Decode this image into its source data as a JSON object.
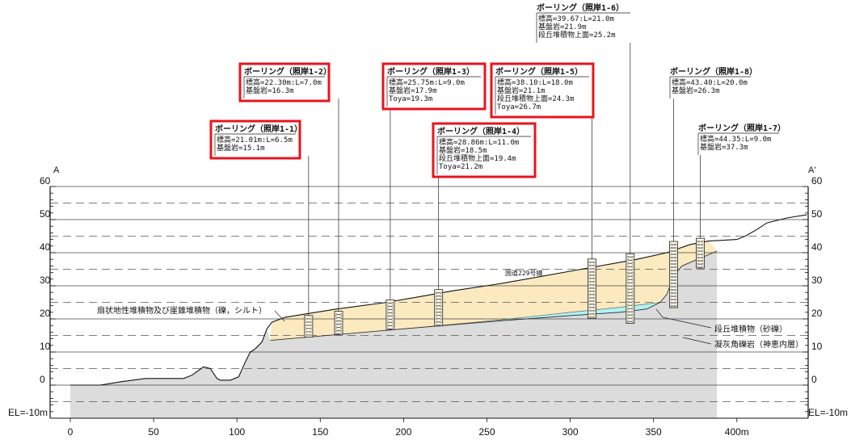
{
  "section": {
    "left_label": "A",
    "right_label": "A'",
    "bottom_elev_label": "EL=-10m"
  },
  "chart_data": {
    "type": "diagram",
    "x_axis": {
      "ticks": [
        0,
        50,
        100,
        150,
        200,
        250,
        300,
        350
      ],
      "last_tick_label": "400m",
      "last_tick": 400
    },
    "y_axis": {
      "ticks": [
        60,
        50,
        40,
        30,
        20,
        10,
        0
      ],
      "range": [
        -10,
        60
      ]
    },
    "ground_profile": [
      [
        0,
        0
      ],
      [
        18,
        0
      ],
      [
        30,
        1
      ],
      [
        45,
        2
      ],
      [
        68,
        2
      ],
      [
        73,
        3
      ],
      [
        80,
        5.5
      ],
      [
        84,
        5
      ],
      [
        88,
        2
      ],
      [
        90,
        1.5
      ],
      [
        96,
        1.5
      ],
      [
        101,
        2.5
      ],
      [
        105,
        7
      ],
      [
        108,
        10
      ],
      [
        111,
        11
      ],
      [
        115,
        13
      ],
      [
        118,
        17
      ],
      [
        121,
        19
      ],
      [
        129,
        20.5
      ],
      [
        160,
        23
      ],
      [
        190,
        25
      ],
      [
        230,
        28.5
      ],
      [
        256,
        30.5
      ],
      [
        262,
        31
      ],
      [
        312,
        35.5
      ],
      [
        340,
        38
      ],
      [
        358,
        40
      ],
      [
        372,
        42.5
      ],
      [
        383,
        43.5
      ],
      [
        400,
        44
      ],
      [
        405,
        45
      ],
      [
        412,
        47
      ],
      [
        418,
        49
      ],
      [
        430,
        50.5
      ],
      [
        442,
        51.5
      ]
    ],
    "bedrock_profile": [
      [
        120,
        13.5
      ],
      [
        200,
        17
      ],
      [
        260,
        19.5
      ],
      [
        300,
        21
      ],
      [
        330,
        22
      ],
      [
        346,
        23
      ],
      [
        354,
        25
      ],
      [
        358,
        27.5
      ],
      [
        362,
        33
      ],
      [
        367,
        36
      ],
      [
        374,
        37.5
      ],
      [
        388,
        40.5
      ]
    ],
    "terrace_base_profile": [
      [
        200,
        17
      ],
      [
        260,
        19.8
      ],
      [
        300,
        22
      ],
      [
        330,
        23.5
      ],
      [
        346,
        24.5
      ]
    ],
    "boreholes": [
      {
        "name": "ボーリング（照岸1-1）",
        "x": 143,
        "top": 21.01,
        "bottom": 14.5,
        "lines": [
          "標高=21.01m:L=6.5m",
          "基盤岩=15.1m"
        ],
        "highlight": true
      },
      {
        "name": "ボーリング（照岸1-2）",
        "x": 161,
        "top": 22.3,
        "bottom": 15.3,
        "lines": [
          "標高=22.30m:L=7.0m",
          "基盤岩=16.3m"
        ],
        "highlight": true
      },
      {
        "name": "ボーリング（照岸1-3）",
        "x": 192,
        "top": 25.75,
        "bottom": 16.75,
        "lines": [
          "標高=25.75m:L=9.0m",
          "基盤岩=17.9m",
          "Toya=19.3m"
        ],
        "highlight": true
      },
      {
        "name": "ボーリング（照岸1-4）",
        "x": 221,
        "top": 28.86,
        "bottom": 17.86,
        "lines": [
          "標高=28.86m:L=11.0m",
          "基盤岩=18.5m",
          "段丘堆積物上面=19.4m",
          "Toya=21.2m"
        ],
        "highlight": true
      },
      {
        "name": "ボーリング（照岸1-5）",
        "x": 313,
        "top": 38.1,
        "bottom": 20.1,
        "lines": [
          "標高=38.10:L=18.0m",
          "基盤岩=21.1m",
          "段丘堆積物上面=24.3m",
          "Toya=26.7m"
        ],
        "highlight": true
      },
      {
        "name": "ボーリング（照岸1-6）",
        "x": 336,
        "top": 39.67,
        "bottom": 18.67,
        "lines": [
          "標高=39.67:L=21.0m",
          "基盤岩=21.9m",
          "段丘堆積物上面=25.2m"
        ],
        "highlight": false
      },
      {
        "name": "ボーリング（照岸1-8）",
        "x": 362,
        "top": 43.4,
        "bottom": 23.4,
        "lines": [
          "標高=43.40:L=20.0m",
          "基盤岩=26.3m"
        ],
        "highlight": false
      },
      {
        "name": "ボーリング（照岸1-7）",
        "x": 378,
        "top": 44.35,
        "bottom": 35.35,
        "lines": [
          "標高=44.35:L=9.0m",
          "基盤岩=37.3m"
        ],
        "highlight": false
      }
    ],
    "annotations": {
      "fan_deposit": "扇状地性堆積物及び崖錐堆積物（礫，シルト）",
      "road": "国道229号線",
      "terrace_deposit": "段丘堆積物（砂礫）",
      "tuff_breccia": "凝灰角礫岩（神恵内層）"
    },
    "colors": {
      "fan_fill": "#fbeac0",
      "terrace_fill": "#aef2f4",
      "bedrock_fill": "#dcdcdc",
      "highlight_box": "#e8141e"
    }
  }
}
